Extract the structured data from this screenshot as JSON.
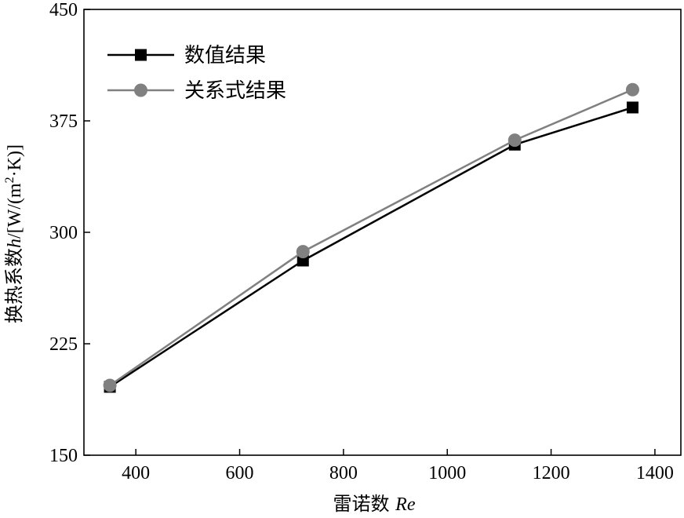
{
  "chart_data": {
    "type": "line",
    "title": "",
    "xlabel": "雷诺数 Re",
    "ylabel": "换热系数h/[W/(m²·K)]",
    "ylabel_parts": {
      "prefix": "换热系数",
      "var": "h",
      "mid": "/[W/(m",
      "sup": "2",
      "suffix": "·K)]"
    },
    "xlabel_parts": {
      "prefix": "雷诺数 ",
      "var": "Re"
    },
    "xlim": [
      300,
      1450
    ],
    "ylim": [
      150,
      450
    ],
    "xticks": [
      400,
      600,
      800,
      1000,
      1200,
      1400
    ],
    "yticks": [
      150,
      225,
      300,
      375,
      450
    ],
    "grid": false,
    "legend_position": "top-left",
    "series": [
      {
        "name": "数值结果",
        "marker": "square",
        "color": "#000000",
        "x": [
          350,
          722,
          1130,
          1357
        ],
        "y": [
          196,
          281,
          359,
          384
        ]
      },
      {
        "name": "关系式结果",
        "marker": "circle",
        "color": "#808080",
        "x": [
          350,
          722,
          1130,
          1357
        ],
        "y": [
          197,
          287,
          362,
          396
        ]
      }
    ]
  }
}
